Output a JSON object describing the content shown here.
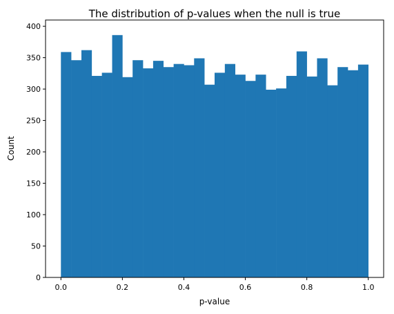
{
  "chart_data": {
    "type": "bar",
    "title": "The distribution of p-values when the null is true",
    "xlabel": "p-value",
    "ylabel": "Count",
    "xlim": [
      -0.05,
      1.05
    ],
    "ylim": [
      0,
      410
    ],
    "grid": false,
    "legend": "none",
    "bar_color": "#1f77b4",
    "bin_edges": [
      0.0,
      0.0333,
      0.0667,
      0.1,
      0.1333,
      0.1667,
      0.2,
      0.2333,
      0.2667,
      0.3,
      0.3333,
      0.3667,
      0.4,
      0.4333,
      0.4667,
      0.5,
      0.5333,
      0.5667,
      0.6,
      0.6333,
      0.6667,
      0.7,
      0.7333,
      0.7667,
      0.8,
      0.8333,
      0.8667,
      0.9,
      0.9333,
      0.9667,
      1.0
    ],
    "values": [
      359,
      346,
      362,
      321,
      326,
      386,
      319,
      346,
      333,
      345,
      335,
      340,
      338,
      349,
      307,
      326,
      340,
      323,
      313,
      323,
      299,
      301,
      321,
      360,
      320,
      349,
      306,
      335,
      330,
      339
    ],
    "x_ticks": [
      0.0,
      0.2,
      0.4,
      0.6,
      0.8,
      1.0
    ],
    "x_tick_labels": [
      "0.0",
      "0.2",
      "0.4",
      "0.6",
      "0.8",
      "1.0"
    ],
    "y_ticks": [
      0,
      50,
      100,
      150,
      200,
      250,
      300,
      350,
      400
    ],
    "y_tick_labels": [
      "0",
      "50",
      "100",
      "150",
      "200",
      "250",
      "300",
      "350",
      "400"
    ]
  }
}
